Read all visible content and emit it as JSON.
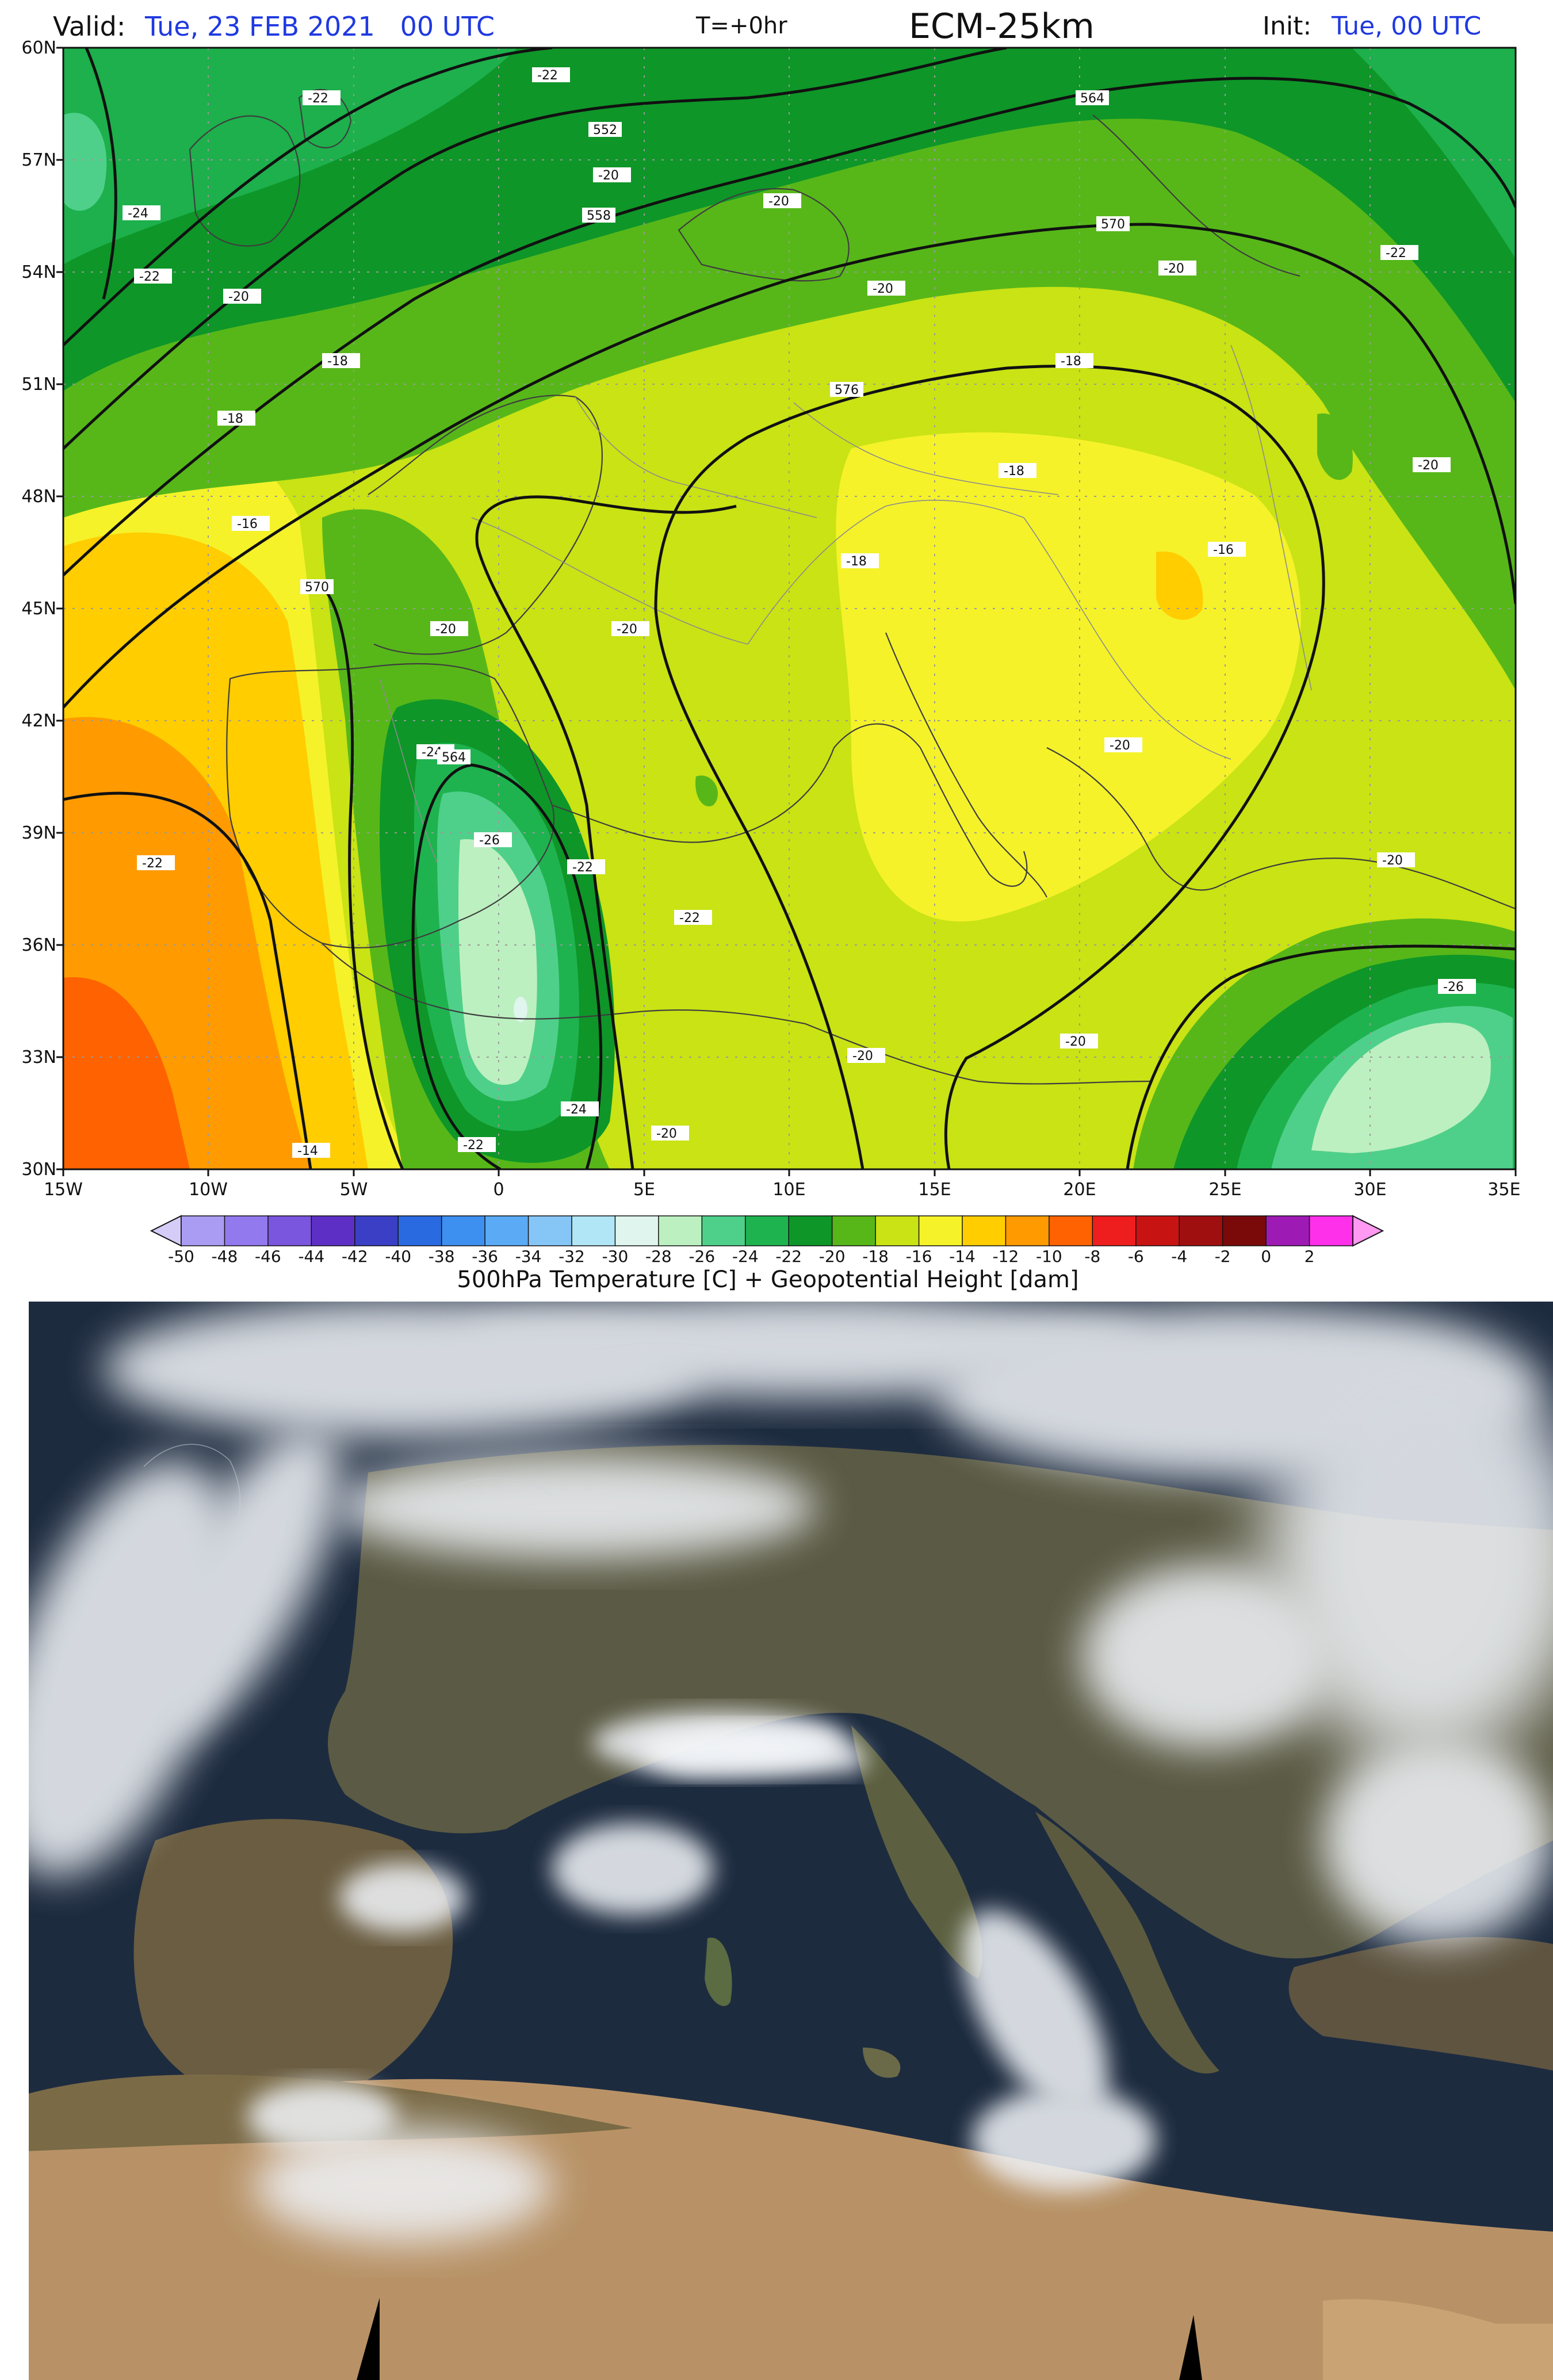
{
  "header": {
    "valid_label": "Valid:",
    "valid_value": "Tue, 23 FEB 2021   00 UTC",
    "forecast_step": "T=+0hr",
    "model": "ECM-25km",
    "init_label": "Init:",
    "init_value": "Tue, 00 UTC"
  },
  "map": {
    "lat_labels": [
      "60N",
      "57N",
      "54N",
      "51N",
      "48N",
      "45N",
      "42N",
      "39N",
      "36N",
      "33N",
      "30N"
    ],
    "lon_labels": [
      "15W",
      "10W",
      "5W",
      "0",
      "5E",
      "10E",
      "15E",
      "20E",
      "25E",
      "30E",
      "35E"
    ],
    "contour_labels": [
      "552",
      "558",
      "564",
      "570",
      "576",
      "564",
      "570",
      "564"
    ],
    "temp_labels": [
      "-22",
      "-22",
      "-24",
      "-22",
      "-20",
      "-18",
      "-18",
      "-16",
      "-20",
      "-20",
      "-20",
      "-24",
      "-26",
      "-22",
      "-24",
      "-22",
      "-20",
      "-20",
      "-14",
      "-22",
      "-20",
      "-18",
      "-18",
      "-16",
      "-18",
      "-20",
      "-20",
      "-20",
      "-20",
      "-22",
      "-26",
      "-20",
      "-20",
      "-22"
    ]
  },
  "colorbar": {
    "tick_labels": [
      "-50",
      "-48",
      "-46",
      "-44",
      "-42",
      "-40",
      "-38",
      "-36",
      "-34",
      "-32",
      "-30",
      "-28",
      "-26",
      "-24",
      "-22",
      "-20",
      "-18",
      "-16",
      "-14",
      "-12",
      "-10",
      "-8",
      "-6",
      "-4",
      "-2",
      "0",
      "2"
    ],
    "colors": [
      "#a99cf2",
      "#9379ee",
      "#7a55dd",
      "#5d2fc5",
      "#3a3fc5",
      "#2a6ae0",
      "#3d8ff0",
      "#5aaaf5",
      "#86c6f7",
      "#b0e6f5",
      "#dff5ee",
      "#bdf0c0",
      "#4fd08a",
      "#1fb350",
      "#0e9628",
      "#57b719",
      "#c9e314",
      "#f5f22a",
      "#ffcd00",
      "#ff9b00",
      "#ff6200",
      "#ee1e1e",
      "#c81313",
      "#a00f0f",
      "#7a0a0a",
      "#9e1ab5",
      "#ff30ea"
    ],
    "title": "500hPa Temperature [C] + Geopotential Height [dam]"
  },
  "colors": {
    "title_blue": "#1f39e0",
    "contour": "#111111",
    "coast": "#4a4a4a",
    "sea_dark": "#19263a",
    "desert": "#b89266",
    "cloud": "#eef1f5"
  }
}
